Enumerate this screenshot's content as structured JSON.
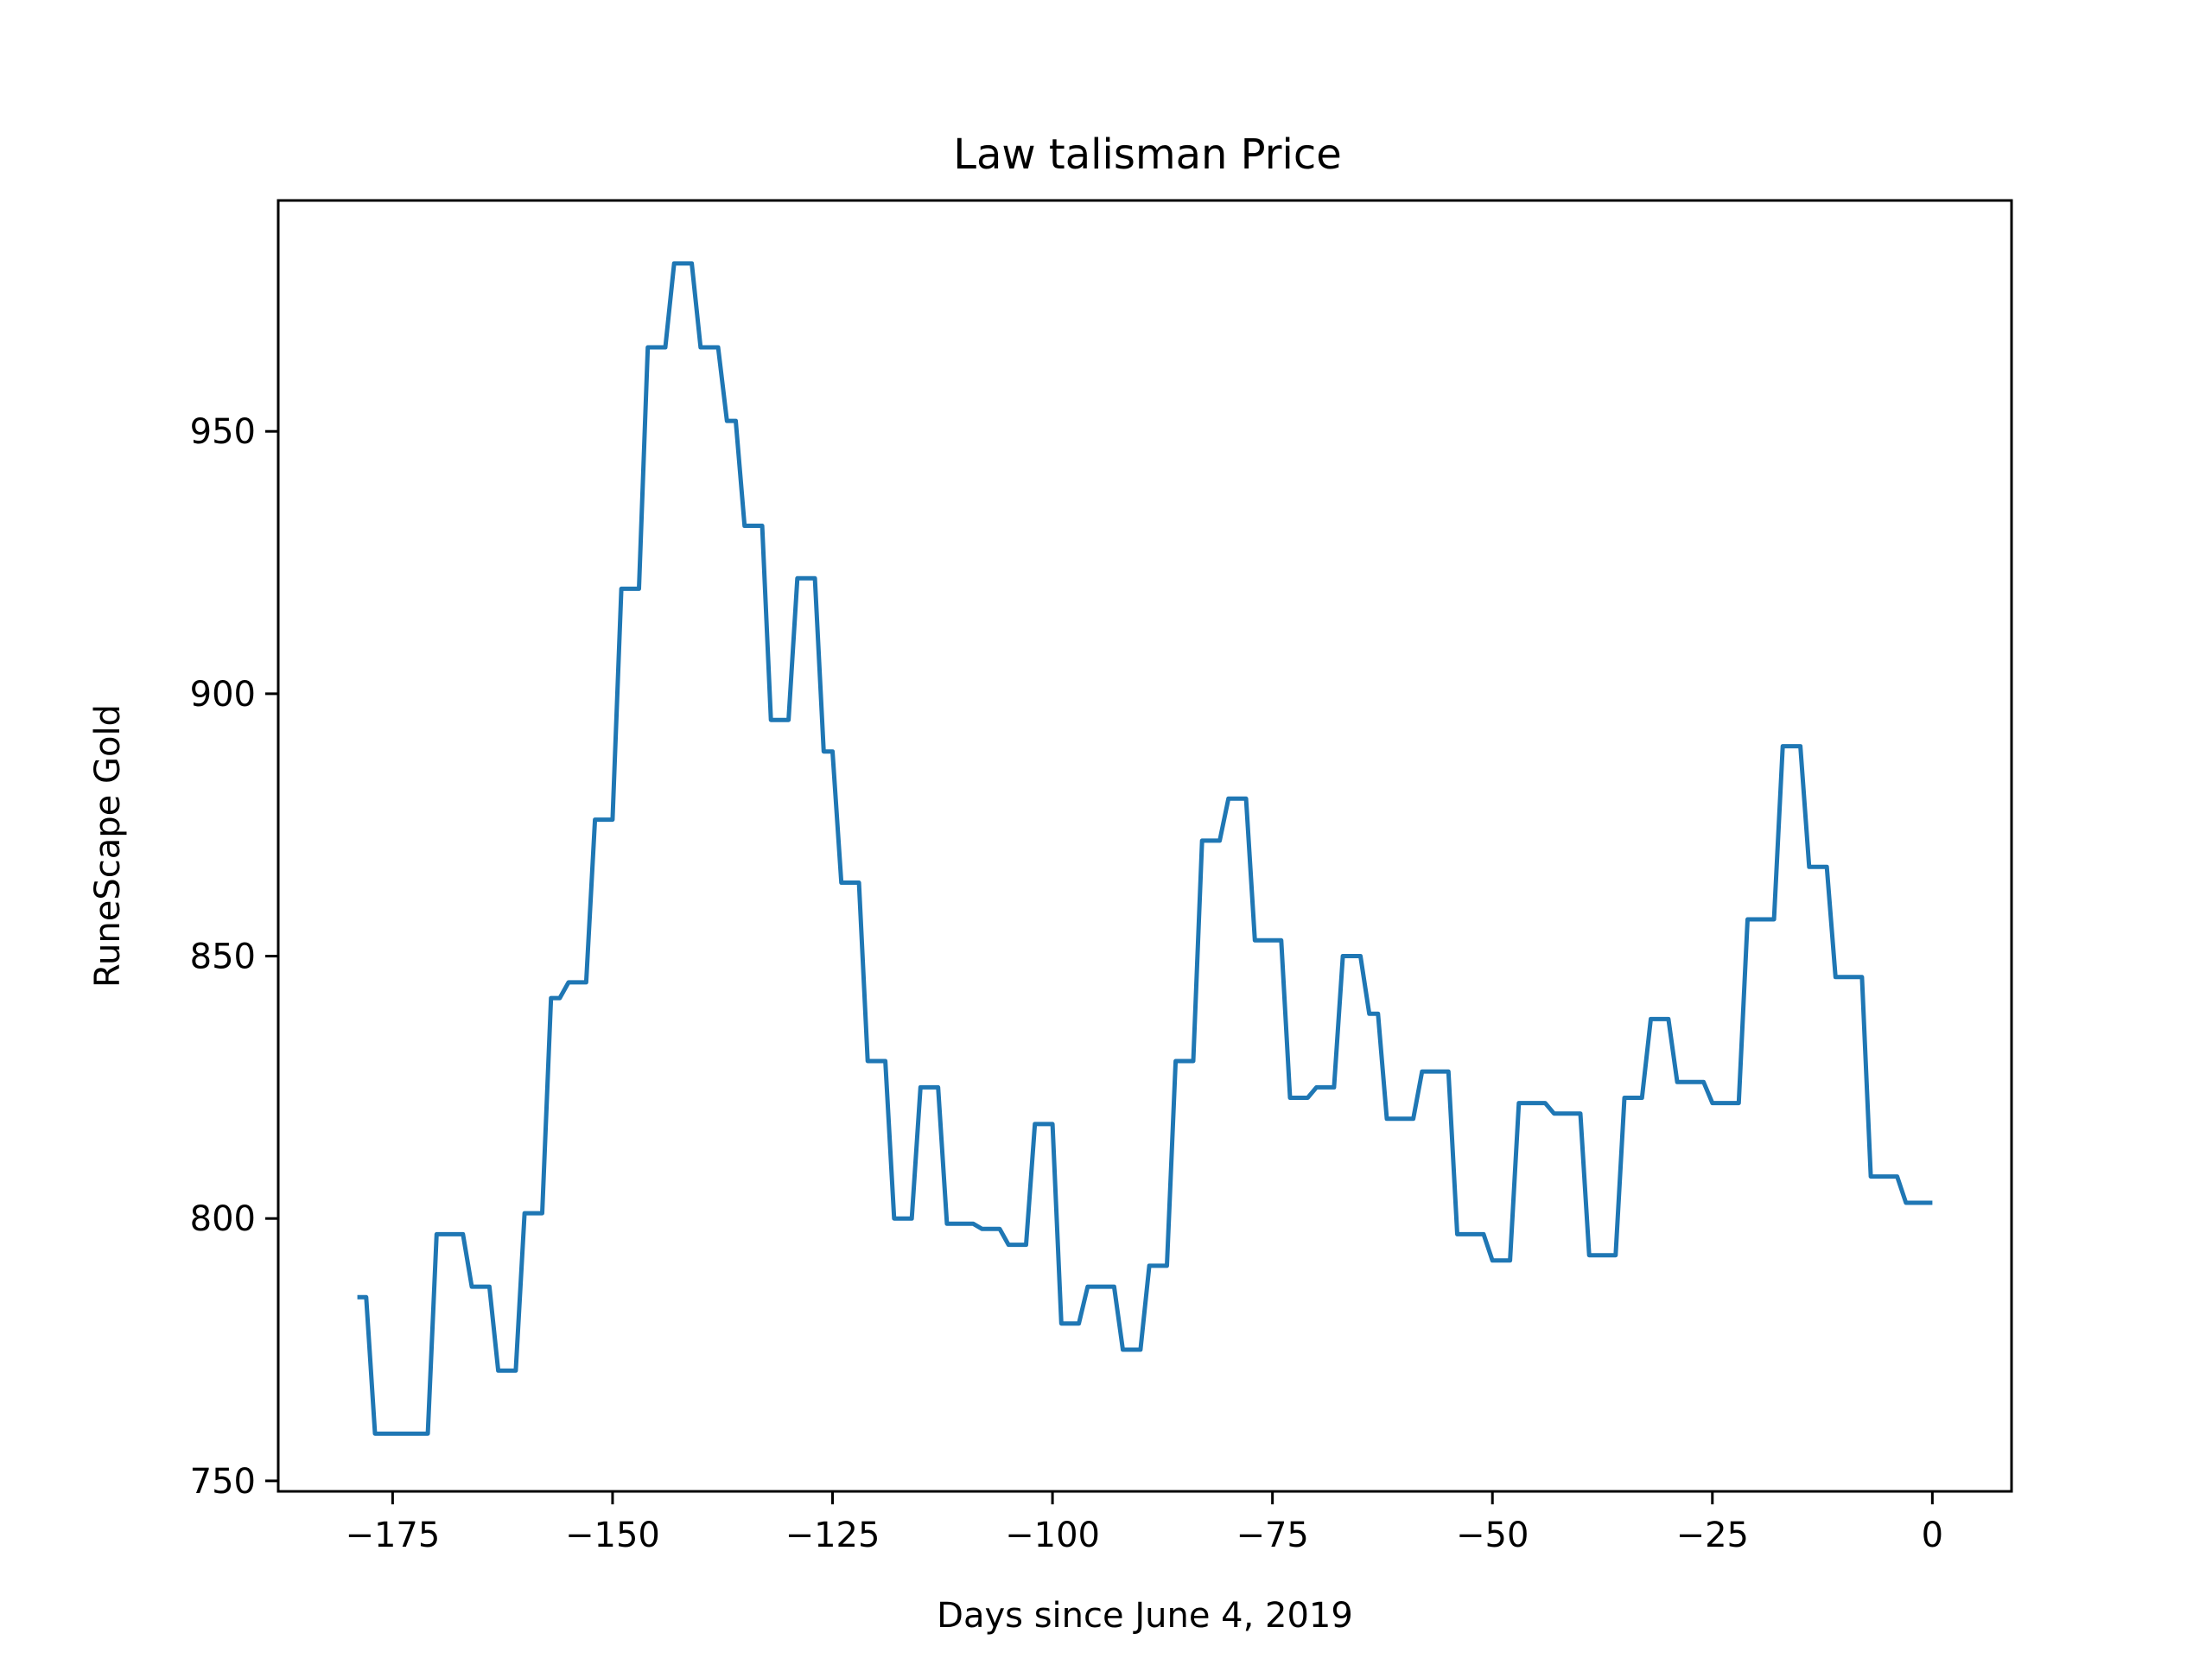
{
  "chart_data": {
    "type": "line",
    "title": "Law talisman Price",
    "xlabel": "Days since June 4, 2019",
    "ylabel": "RuneScape Gold",
    "xlim": [
      -188,
      9
    ],
    "ylim": [
      748,
      994
    ],
    "xticks": [
      {
        "value": -175,
        "label": "−175"
      },
      {
        "value": -150,
        "label": "−150"
      },
      {
        "value": -125,
        "label": "−125"
      },
      {
        "value": -100,
        "label": "−100"
      },
      {
        "value": -75,
        "label": "−75"
      },
      {
        "value": -50,
        "label": "−50"
      },
      {
        "value": -25,
        "label": "−25"
      },
      {
        "value": 0,
        "label": "0"
      }
    ],
    "yticks": [
      {
        "value": 750,
        "label": "750"
      },
      {
        "value": 800,
        "label": "800"
      },
      {
        "value": 850,
        "label": "850"
      },
      {
        "value": 900,
        "label": "900"
      },
      {
        "value": 950,
        "label": "950"
      }
    ],
    "grid": false,
    "legend": "none",
    "series": [
      {
        "color": "#1f77b4",
        "points": [
          [
            -179,
            785
          ],
          [
            -178,
            785
          ],
          [
            -177,
            759
          ],
          [
            -176,
            759
          ],
          [
            -175,
            759
          ],
          [
            -174,
            759
          ],
          [
            -173,
            759
          ],
          [
            -172,
            759
          ],
          [
            -171,
            759
          ],
          [
            -170,
            797
          ],
          [
            -169,
            797
          ],
          [
            -168,
            797
          ],
          [
            -167,
            797
          ],
          [
            -166,
            787
          ],
          [
            -165,
            787
          ],
          [
            -164,
            787
          ],
          [
            -163,
            771
          ],
          [
            -162,
            771
          ],
          [
            -161,
            771
          ],
          [
            -160,
            801
          ],
          [
            -159,
            801
          ],
          [
            -158,
            801
          ],
          [
            -157,
            842
          ],
          [
            -156,
            842
          ],
          [
            -155,
            845
          ],
          [
            -154,
            845
          ],
          [
            -153,
            845
          ],
          [
            -152,
            876
          ],
          [
            -151,
            876
          ],
          [
            -150,
            876
          ],
          [
            -149,
            920
          ],
          [
            -148,
            920
          ],
          [
            -147,
            920
          ],
          [
            -146,
            966
          ],
          [
            -145,
            966
          ],
          [
            -144,
            966
          ],
          [
            -143,
            982
          ],
          [
            -142,
            982
          ],
          [
            -141,
            982
          ],
          [
            -140,
            966
          ],
          [
            -139,
            966
          ],
          [
            -138,
            966
          ],
          [
            -137,
            952
          ],
          [
            -136,
            952
          ],
          [
            -135,
            932
          ],
          [
            -134,
            932
          ],
          [
            -133,
            932
          ],
          [
            -132,
            895
          ],
          [
            -131,
            895
          ],
          [
            -130,
            895
          ],
          [
            -129,
            922
          ],
          [
            -128,
            922
          ],
          [
            -127,
            922
          ],
          [
            -126,
            889
          ],
          [
            -125,
            889
          ],
          [
            -124,
            864
          ],
          [
            -123,
            864
          ],
          [
            -122,
            864
          ],
          [
            -121,
            830
          ],
          [
            -120,
            830
          ],
          [
            -119,
            830
          ],
          [
            -118,
            800
          ],
          [
            -117,
            800
          ],
          [
            -116,
            800
          ],
          [
            -115,
            825
          ],
          [
            -114,
            825
          ],
          [
            -113,
            825
          ],
          [
            -112,
            799
          ],
          [
            -111,
            799
          ],
          [
            -110,
            799
          ],
          [
            -109,
            799
          ],
          [
            -108,
            798
          ],
          [
            -107,
            798
          ],
          [
            -106,
            798
          ],
          [
            -105,
            795
          ],
          [
            -104,
            795
          ],
          [
            -103,
            795
          ],
          [
            -102,
            818
          ],
          [
            -101,
            818
          ],
          [
            -100,
            818
          ],
          [
            -99,
            780
          ],
          [
            -98,
            780
          ],
          [
            -97,
            780
          ],
          [
            -96,
            787
          ],
          [
            -95,
            787
          ],
          [
            -94,
            787
          ],
          [
            -93,
            787
          ],
          [
            -92,
            775
          ],
          [
            -91,
            775
          ],
          [
            -90,
            775
          ],
          [
            -89,
            791
          ],
          [
            -88,
            791
          ],
          [
            -87,
            791
          ],
          [
            -86,
            830
          ],
          [
            -85,
            830
          ],
          [
            -84,
            830
          ],
          [
            -83,
            872
          ],
          [
            -82,
            872
          ],
          [
            -81,
            872
          ],
          [
            -80,
            880
          ],
          [
            -79,
            880
          ],
          [
            -78,
            880
          ],
          [
            -77,
            853
          ],
          [
            -76,
            853
          ],
          [
            -75,
            853
          ],
          [
            -74,
            853
          ],
          [
            -73,
            823
          ],
          [
            -72,
            823
          ],
          [
            -71,
            823
          ],
          [
            -70,
            825
          ],
          [
            -69,
            825
          ],
          [
            -68,
            825
          ],
          [
            -67,
            850
          ],
          [
            -66,
            850
          ],
          [
            -65,
            850
          ],
          [
            -64,
            839
          ],
          [
            -63,
            839
          ],
          [
            -62,
            819
          ],
          [
            -61,
            819
          ],
          [
            -60,
            819
          ],
          [
            -59,
            819
          ],
          [
            -58,
            828
          ],
          [
            -57,
            828
          ],
          [
            -56,
            828
          ],
          [
            -55,
            828
          ],
          [
            -54,
            797
          ],
          [
            -53,
            797
          ],
          [
            -52,
            797
          ],
          [
            -51,
            797
          ],
          [
            -50,
            792
          ],
          [
            -49,
            792
          ],
          [
            -48,
            792
          ],
          [
            -47,
            822
          ],
          [
            -46,
            822
          ],
          [
            -45,
            822
          ],
          [
            -44,
            822
          ],
          [
            -43,
            820
          ],
          [
            -42,
            820
          ],
          [
            -41,
            820
          ],
          [
            -40,
            820
          ],
          [
            -39,
            793
          ],
          [
            -38,
            793
          ],
          [
            -37,
            793
          ],
          [
            -36,
            793
          ],
          [
            -35,
            823
          ],
          [
            -34,
            823
          ],
          [
            -33,
            823
          ],
          [
            -32,
            838
          ],
          [
            -31,
            838
          ],
          [
            -30,
            838
          ],
          [
            -29,
            826
          ],
          [
            -28,
            826
          ],
          [
            -27,
            826
          ],
          [
            -26,
            826
          ],
          [
            -25,
            822
          ],
          [
            -24,
            822
          ],
          [
            -23,
            822
          ],
          [
            -22,
            822
          ],
          [
            -21,
            857
          ],
          [
            -20,
            857
          ],
          [
            -19,
            857
          ],
          [
            -18,
            857
          ],
          [
            -17,
            890
          ],
          [
            -16,
            890
          ],
          [
            -15,
            890
          ],
          [
            -14,
            867
          ],
          [
            -13,
            867
          ],
          [
            -12,
            867
          ],
          [
            -11,
            846
          ],
          [
            -10,
            846
          ],
          [
            -9,
            846
          ],
          [
            -8,
            846
          ],
          [
            -7,
            808
          ],
          [
            -6,
            808
          ],
          [
            -5,
            808
          ],
          [
            -4,
            808
          ],
          [
            -3,
            803
          ],
          [
            -2,
            803
          ],
          [
            -1,
            803
          ],
          [
            0,
            803
          ]
        ]
      }
    ]
  }
}
